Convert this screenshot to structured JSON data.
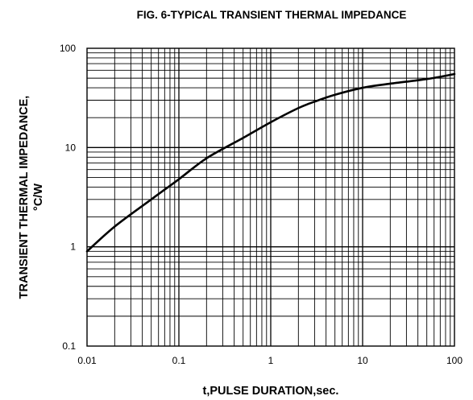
{
  "chart_data": {
    "type": "line",
    "title": "FIG. 6-TYPICAL TRANSIENT THERMAL IMPEDANCE",
    "xlabel": "t,PULSE DURATION,sec.",
    "ylabel_line1": "TRANSIENT THERMAL IMPEDANCE,",
    "ylabel_line2": "°C/W",
    "xscale": "log",
    "yscale": "log",
    "xlim": [
      0.01,
      100
    ],
    "ylim": [
      0.1,
      100
    ],
    "grid": true,
    "x_tick_labels": [
      "0.01",
      "0.1",
      "1",
      "10",
      "100"
    ],
    "y_tick_labels": [
      "0.1",
      "1",
      "10",
      "100"
    ],
    "series": [
      {
        "x": [
          0.01,
          0.02,
          0.05,
          0.1,
          0.2,
          0.5,
          1,
          2,
          3,
          5,
          10,
          20,
          50,
          100
        ],
        "y": [
          0.9,
          1.6,
          3.0,
          4.8,
          7.8,
          12.5,
          18,
          25,
          29,
          34,
          40,
          44,
          49,
          55
        ]
      }
    ]
  }
}
